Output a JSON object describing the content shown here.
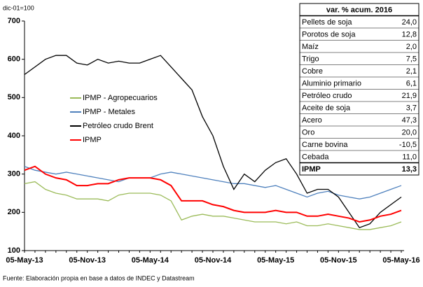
{
  "chart_data": {
    "type": "line",
    "y_unit_label": "dic-01=100",
    "categories": [
      "05-May-13",
      null,
      null,
      null,
      null,
      null,
      "05-Nov-13",
      null,
      null,
      null,
      null,
      null,
      "05-May-14",
      null,
      null,
      null,
      null,
      null,
      "05-Nov-14",
      null,
      null,
      null,
      null,
      null,
      "05-May-15",
      null,
      null,
      null,
      null,
      null,
      "05-Nov-15",
      null,
      null,
      null,
      null,
      null,
      "05-May-16"
    ],
    "ylim": [
      100,
      700
    ],
    "yticks": [
      100,
      200,
      300,
      400,
      500,
      600,
      700
    ],
    "series": [
      {
        "name": "IPMP - Agropecuarios",
        "color": "#9bbb59",
        "values": [
          275,
          280,
          260,
          250,
          245,
          235,
          235,
          235,
          230,
          245,
          250,
          250,
          250,
          245,
          230,
          180,
          190,
          195,
          190,
          190,
          185,
          180,
          175,
          175,
          175,
          170,
          175,
          165,
          165,
          170,
          165,
          160,
          155,
          155,
          160,
          165,
          175
        ]
      },
      {
        "name": "IPMP - Metales",
        "color": "#4f81bd",
        "values": [
          320,
          310,
          305,
          300,
          305,
          300,
          295,
          290,
          285,
          280,
          290,
          290,
          290,
          300,
          305,
          300,
          295,
          290,
          285,
          280,
          275,
          275,
          270,
          265,
          270,
          260,
          250,
          240,
          250,
          255,
          245,
          240,
          235,
          240,
          250,
          260,
          270
        ]
      },
      {
        "name": "Petróleo crudo Brent",
        "color": "#000000",
        "values": [
          560,
          580,
          600,
          610,
          610,
          590,
          585,
          600,
          590,
          595,
          590,
          590,
          600,
          610,
          580,
          550,
          520,
          450,
          400,
          320,
          260,
          300,
          280,
          310,
          330,
          340,
          300,
          250,
          260,
          260,
          240,
          200,
          160,
          170,
          200,
          220,
          240
        ]
      },
      {
        "name": "IPMP",
        "color": "#ff0000",
        "values": [
          310,
          320,
          300,
          290,
          285,
          270,
          270,
          275,
          275,
          285,
          290,
          290,
          290,
          285,
          270,
          230,
          230,
          230,
          220,
          215,
          205,
          200,
          200,
          200,
          205,
          200,
          200,
          190,
          190,
          195,
          190,
          185,
          175,
          180,
          190,
          195,
          205
        ]
      }
    ],
    "legend": "upper left",
    "table": {
      "header": "var. % acum. 2016",
      "rows": [
        [
          "Pellets de soja",
          "24,0"
        ],
        [
          "Porotos de soja",
          "12,8"
        ],
        [
          "Maíz",
          "2,0"
        ],
        [
          "Trigo",
          "7,5"
        ],
        [
          "Cobre",
          "2,1"
        ],
        [
          "Aluminio primario",
          "6,1"
        ],
        [
          "Petróleo crudo",
          "21,9"
        ],
        [
          "Aceite de soja",
          "3,7"
        ],
        [
          "Acero",
          "47,3"
        ],
        [
          "Oro",
          "20,0"
        ],
        [
          "Carne bovina",
          "-10,5"
        ],
        [
          "Cebada",
          "11,0"
        ],
        [
          "IPMP",
          "13,3"
        ]
      ]
    },
    "source": "Fuente: Elaboración propia en base a datos de INDEC y Datastream"
  }
}
